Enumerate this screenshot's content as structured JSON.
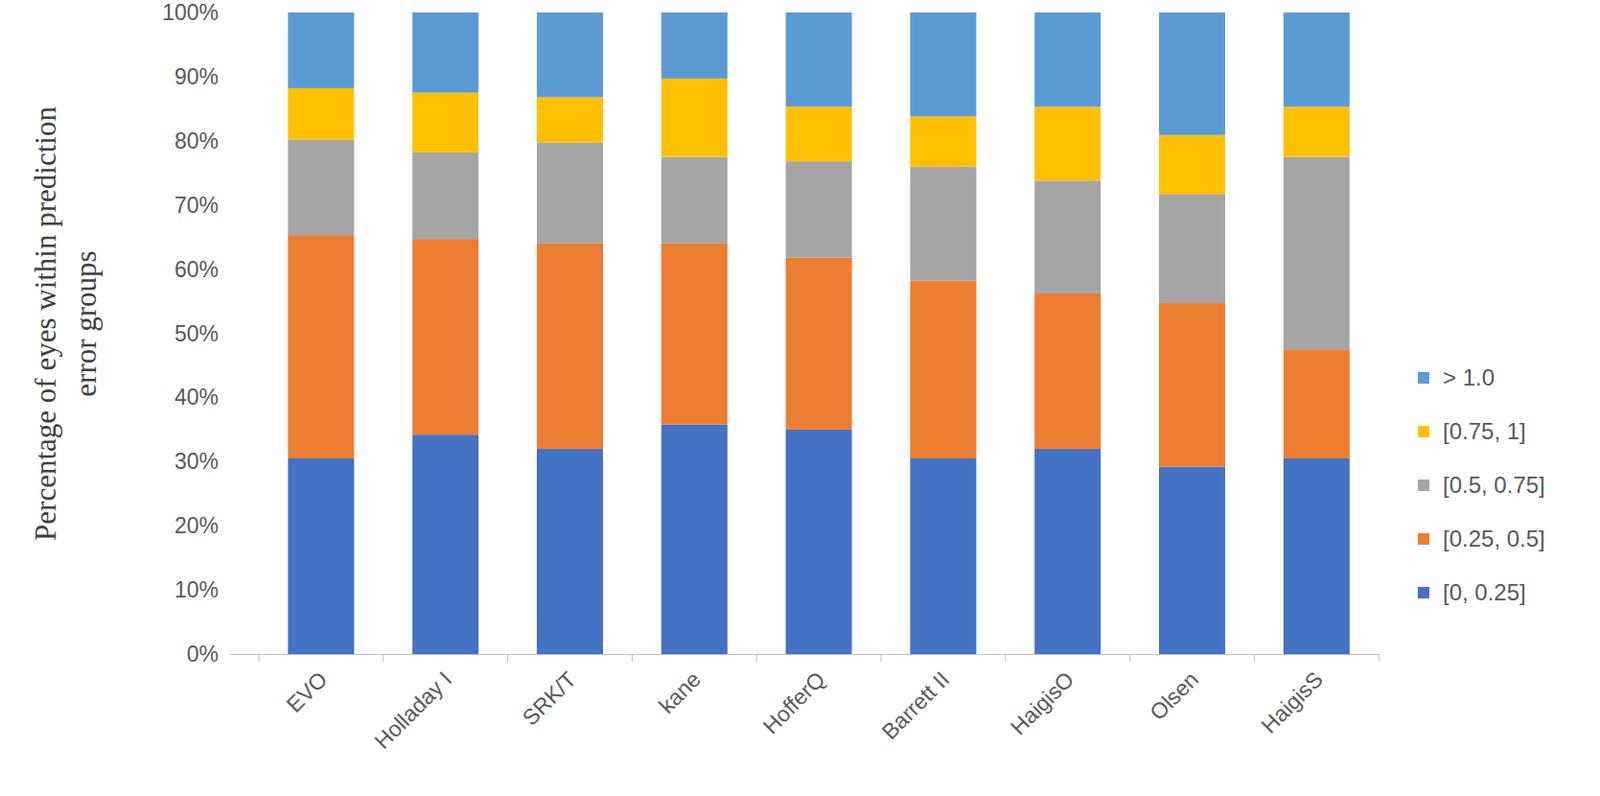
{
  "chart_data": {
    "type": "bar",
    "stacked": true,
    "grid": false,
    "legend": "right",
    "y_label": "Percentage of eyes within prediction error groups",
    "categories": [
      "EVO",
      "Holladay I",
      "SRK/T",
      "kane",
      "HofferQ",
      "Barrett II",
      "HaigisO",
      "Olsen",
      "HaigisS"
    ],
    "ylim": [
      0,
      100
    ],
    "yticks": [
      {
        "value": 0,
        "label": "0%"
      },
      {
        "value": 10,
        "label": "10%"
      },
      {
        "value": 20,
        "label": "20%"
      },
      {
        "value": 30,
        "label": "30%"
      },
      {
        "value": 40,
        "label": "40%"
      },
      {
        "value": 50,
        "label": "50%"
      },
      {
        "value": 60,
        "label": "60%"
      },
      {
        "value": 70,
        "label": "70%"
      },
      {
        "value": 80,
        "label": "80%"
      },
      {
        "value": 90,
        "label": "90%"
      },
      {
        "value": 100,
        "label": "100%"
      }
    ],
    "series": [
      {
        "name": "[0, 0.25]",
        "color": "#4472c4",
        "values": [
          30.5,
          34.2,
          32.0,
          35.8,
          35.0,
          30.5,
          32.0,
          29.2,
          30.5
        ]
      },
      {
        "name": "[0.25, 0.5]",
        "color": "#ed7d31",
        "values": [
          34.8,
          30.5,
          32.0,
          28.2,
          26.8,
          27.7,
          24.2,
          25.5,
          17.0
        ]
      },
      {
        "name": "[0.5, 0.75]",
        "color": "#a5a5a5",
        "values": [
          14.9,
          13.5,
          15.7,
          13.5,
          15.0,
          17.8,
          17.6,
          17.0,
          30.0
        ]
      },
      {
        "name": "[0.75, 1]",
        "color": "#ffc000",
        "values": [
          8.0,
          9.3,
          7.1,
          12.2,
          8.5,
          7.8,
          11.5,
          9.2,
          7.8
        ]
      },
      {
        "name": "> 1.0",
        "color": "#5b9bd5",
        "values": [
          11.8,
          12.5,
          13.2,
          10.3,
          14.7,
          16.2,
          14.7,
          19.1,
          14.7
        ]
      }
    ]
  }
}
